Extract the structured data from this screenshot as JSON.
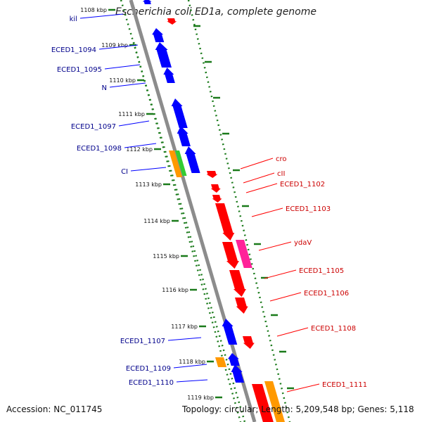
{
  "title": "Escherichia coli ED1a, complete genome",
  "footer": {
    "accession": "Accession: NC_011745",
    "topology": "Topology: circular; Length: 5,209,548 bp; Genes: 5,118"
  },
  "colors": {
    "strand_minus": "#0000ff",
    "strand_plus": "#ff0000",
    "orange": "#ff9900",
    "green": "#33cc33",
    "magenta": "#ff2299",
    "ruler": "#8c8c8c",
    "dots": "#1a7a1a"
  },
  "ticks": [
    {
      "label": "1108 kbp",
      "kbp": 1108
    },
    {
      "label": "1109 kbp",
      "kbp": 1109
    },
    {
      "label": "1110 kbp",
      "kbp": 1110
    },
    {
      "label": "1111 kbp",
      "kbp": 1111
    },
    {
      "label": "1112 kbp",
      "kbp": 1112
    },
    {
      "label": "1113 kbp",
      "kbp": 1113
    },
    {
      "label": "1114 kbp",
      "kbp": 1114
    },
    {
      "label": "1115 kbp",
      "kbp": 1115
    },
    {
      "label": "1116 kbp",
      "kbp": 1116
    },
    {
      "label": "1117 kbp",
      "kbp": 1117
    },
    {
      "label": "1118 kbp",
      "kbp": 1118
    },
    {
      "label": "1119 kbp",
      "kbp": 1119
    }
  ],
  "left_labels": [
    "kil",
    "ECED1_1094",
    "ECED1_1095",
    "N",
    "ECED1_1097",
    "ECED1_1098",
    "CI",
    "ECED1_1107",
    "ECED1_1109",
    "ECED1_1110"
  ],
  "right_labels": [
    "cro",
    "cII",
    "ECED1_1102",
    "ECED1_1103",
    "ydaV",
    "ECED1_1105",
    "ECED1_1106",
    "ECED1_1108",
    "ECED1_1111"
  ]
}
